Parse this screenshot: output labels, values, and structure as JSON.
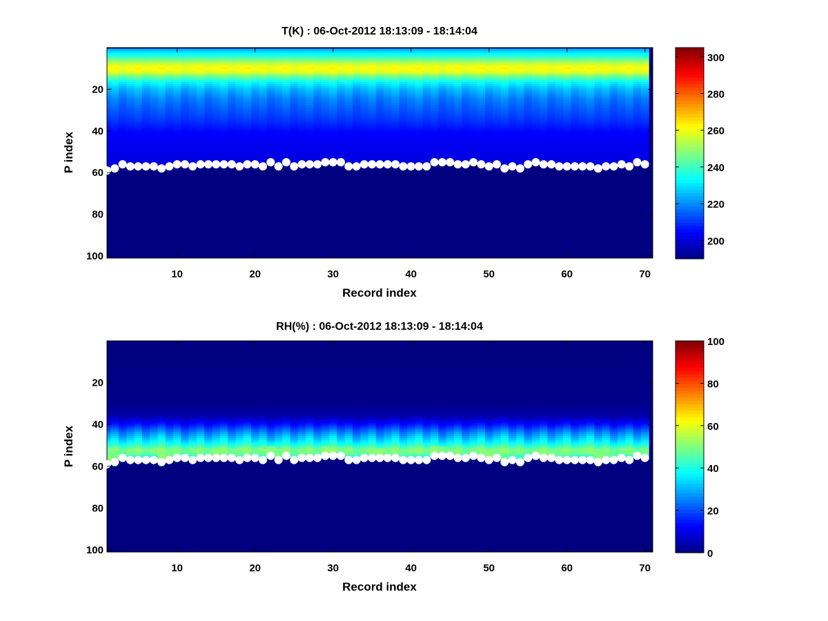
{
  "chart_data": [
    {
      "type": "heatmap",
      "title": "T(K) : 06-Oct-2012 18:13:09 - 18:14:04",
      "xlabel": "Record index",
      "ylabel": "P index",
      "xlim": [
        1,
        71
      ],
      "ylim": [
        0,
        101
      ],
      "y_reversed": true,
      "xticks": [
        10,
        20,
        30,
        40,
        50,
        60,
        70
      ],
      "yticks": [
        20,
        40,
        60,
        80,
        100
      ],
      "colormap": "jet",
      "colorbar": {
        "min": 190,
        "max": 305,
        "ticks": [
          200,
          220,
          240,
          260,
          280,
          300
        ]
      },
      "fill_value": 190,
      "profile_model": {
        "description": "Temperature vs P index (approx., same for all records with small record-to-record jitter)",
        "p": [
          1,
          4,
          7,
          9,
          10,
          12,
          14,
          17,
          20,
          25,
          30,
          35,
          40,
          45,
          50,
          55
        ],
        "value": [
          225,
          237,
          252,
          260,
          262,
          257,
          245,
          232,
          225,
          218,
          214,
          210,
          205,
          203,
          202,
          201
        ]
      },
      "markers": {
        "color": "#ffffff",
        "x": [
          1,
          2,
          3,
          4,
          5,
          6,
          7,
          8,
          9,
          10,
          11,
          12,
          13,
          14,
          15,
          16,
          17,
          18,
          19,
          20,
          21,
          22,
          23,
          24,
          25,
          26,
          27,
          28,
          29,
          30,
          31,
          32,
          33,
          34,
          35,
          36,
          37,
          38,
          39,
          40,
          41,
          42,
          43,
          44,
          45,
          46,
          47,
          48,
          49,
          50,
          51,
          52,
          53,
          54,
          55,
          56,
          57,
          58,
          59,
          60,
          61,
          62,
          63,
          64,
          65,
          66,
          67,
          68,
          69,
          70
        ],
        "y": [
          59,
          58,
          56,
          57,
          57,
          57,
          57,
          58,
          57,
          56,
          56,
          57,
          56,
          56,
          56,
          56,
          56,
          57,
          56,
          56,
          57,
          55,
          57,
          55,
          57,
          56,
          56,
          56,
          55,
          55,
          55,
          57,
          57,
          56,
          56,
          56,
          56,
          56,
          57,
          57,
          57,
          57,
          55,
          55,
          55,
          56,
          56,
          55,
          56,
          57,
          56,
          58,
          57,
          58,
          56,
          55,
          56,
          56,
          57,
          57,
          57,
          57,
          57,
          58,
          57,
          57,
          56,
          57,
          55,
          56
        ]
      }
    },
    {
      "type": "heatmap",
      "title": "RH(%) : 06-Oct-2012 18:13:09 - 18:14:04",
      "xlabel": "Record index",
      "ylabel": "P index",
      "xlim": [
        1,
        71
      ],
      "ylim": [
        0,
        101
      ],
      "y_reversed": true,
      "xticks": [
        10,
        20,
        30,
        40,
        50,
        60,
        70
      ],
      "yticks": [
        20,
        40,
        60,
        80,
        100
      ],
      "colormap": "jet",
      "colorbar": {
        "min": 0,
        "max": 100,
        "ticks": [
          0,
          20,
          40,
          60,
          80,
          100
        ]
      },
      "fill_value": 0,
      "profile_model": {
        "description": "Relative humidity vs P index (approx., same for all records with small record-to-record jitter)",
        "p": [
          1,
          30,
          36,
          40,
          44,
          48,
          50,
          52,
          54,
          56
        ],
        "value": [
          0,
          1,
          4,
          14,
          26,
          36,
          42,
          50,
          48,
          35
        ]
      },
      "markers": {
        "color": "#ffffff",
        "x": [
          1,
          2,
          3,
          4,
          5,
          6,
          7,
          8,
          9,
          10,
          11,
          12,
          13,
          14,
          15,
          16,
          17,
          18,
          19,
          20,
          21,
          22,
          23,
          24,
          25,
          26,
          27,
          28,
          29,
          30,
          31,
          32,
          33,
          34,
          35,
          36,
          37,
          38,
          39,
          40,
          41,
          42,
          43,
          44,
          45,
          46,
          47,
          48,
          49,
          50,
          51,
          52,
          53,
          54,
          55,
          56,
          57,
          58,
          59,
          60,
          61,
          62,
          63,
          64,
          65,
          66,
          67,
          68,
          69,
          70
        ],
        "y": [
          59,
          58,
          56,
          57,
          57,
          57,
          57,
          58,
          57,
          56,
          56,
          57,
          56,
          56,
          56,
          56,
          56,
          57,
          56,
          56,
          57,
          55,
          57,
          55,
          57,
          56,
          56,
          56,
          55,
          55,
          55,
          57,
          57,
          56,
          56,
          56,
          56,
          56,
          57,
          57,
          57,
          57,
          55,
          55,
          55,
          56,
          56,
          55,
          56,
          57,
          56,
          58,
          57,
          58,
          56,
          55,
          56,
          56,
          57,
          57,
          57,
          57,
          57,
          58,
          57,
          57,
          56,
          57,
          55,
          56
        ]
      }
    }
  ]
}
